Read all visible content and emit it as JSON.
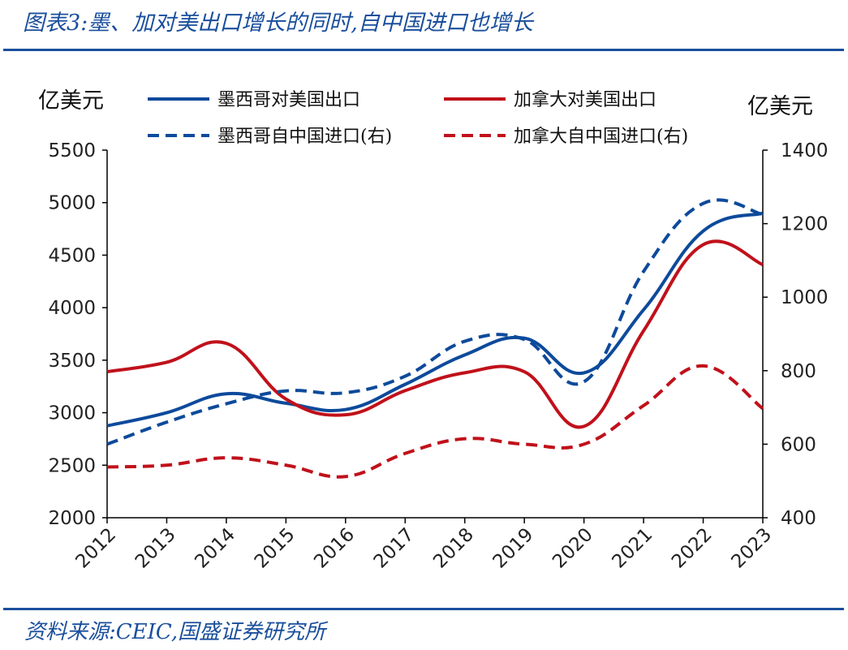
{
  "header": {
    "title": "图表3:墨、加对美出口增长的同时,自中国进口也增长"
  },
  "footer": {
    "source": "资料来源:CEIC,国盛证券研究所"
  },
  "chart_data": {
    "type": "line",
    "title": "图表3:墨、加对美出口增长的同时,自中国进口也增长",
    "x": [
      "2012",
      "2013",
      "2014",
      "2015",
      "2016",
      "2017",
      "2018",
      "2019",
      "2020",
      "2021",
      "2022",
      "2023"
    ],
    "y_left_label": "亿美元",
    "y_right_label": "亿美元",
    "y_left_lim": [
      2000,
      5500
    ],
    "y_left_ticks": [
      2000,
      2500,
      3000,
      3500,
      4000,
      4500,
      5000,
      5500
    ],
    "y_right_lim": [
      400,
      1400
    ],
    "y_right_ticks": [
      400,
      600,
      800,
      1000,
      1200,
      1400
    ],
    "grid": false,
    "legend_position": "top",
    "series": [
      {
        "name": "墨西哥对美国出口",
        "axis": "left",
        "style": "solid",
        "color": "#0d4a9b",
        "values": [
          2875,
          3000,
          3180,
          3090,
          3030,
          3270,
          3550,
          3710,
          3380,
          3980,
          4730,
          4900
        ]
      },
      {
        "name": "加拿大对美国出口",
        "axis": "left",
        "style": "solid",
        "color": "#c0111b",
        "values": [
          3390,
          3480,
          3660,
          3130,
          2980,
          3210,
          3380,
          3390,
          2870,
          3780,
          4600,
          4410
        ]
      },
      {
        "name": "墨西哥自中国进口(右)",
        "axis": "right",
        "style": "dashed",
        "color": "#0d4a9b",
        "values": [
          600,
          660,
          710,
          745,
          740,
          785,
          880,
          885,
          770,
          1070,
          1255,
          1225
        ]
      },
      {
        "name": "加拿大自中国进口(右)",
        "axis": "right",
        "style": "dashed",
        "color": "#c0111b",
        "values": [
          538,
          543,
          563,
          543,
          512,
          575,
          615,
          600,
          600,
          705,
          813,
          697
        ]
      }
    ]
  }
}
